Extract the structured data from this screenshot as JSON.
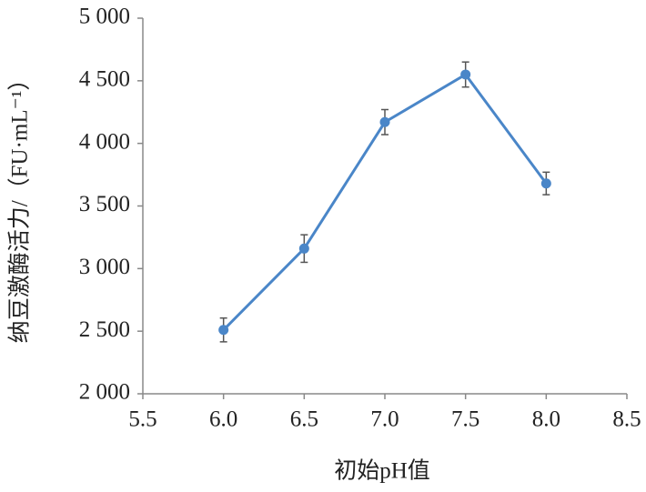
{
  "chart_data": {
    "type": "line",
    "x_label": "初始pH值",
    "y_label": "纳豆激酶活力/（FU·mL⁻¹）",
    "x": [
      6.0,
      6.5,
      7.0,
      7.5,
      8.0
    ],
    "values": [
      2510,
      3160,
      4170,
      4550,
      3680
    ],
    "errors": [
      95,
      110,
      100,
      100,
      90
    ],
    "color": "#4a86c8",
    "xlim": [
      5.5,
      8.5
    ],
    "xticks": [
      5.5,
      {
        "value": 6,
        "label": "6.0"
      },
      6.5,
      {
        "value": 7,
        "label": "7.0"
      },
      7.5,
      {
        "value": 8,
        "label": "8.0"
      },
      8.5
    ],
    "ylim": [
      2000,
      5000
    ],
    "yticks": [
      {
        "value": 2000,
        "label": "2 000"
      },
      {
        "value": 2500,
        "label": "2 500"
      },
      {
        "value": 3000,
        "label": "3 000"
      },
      {
        "value": 3500,
        "label": "3 500"
      },
      {
        "value": 4000,
        "label": "4 000"
      },
      {
        "value": 4500,
        "label": "4 500"
      },
      {
        "value": 5000,
        "label": "5 000"
      }
    ],
    "grid": false
  }
}
